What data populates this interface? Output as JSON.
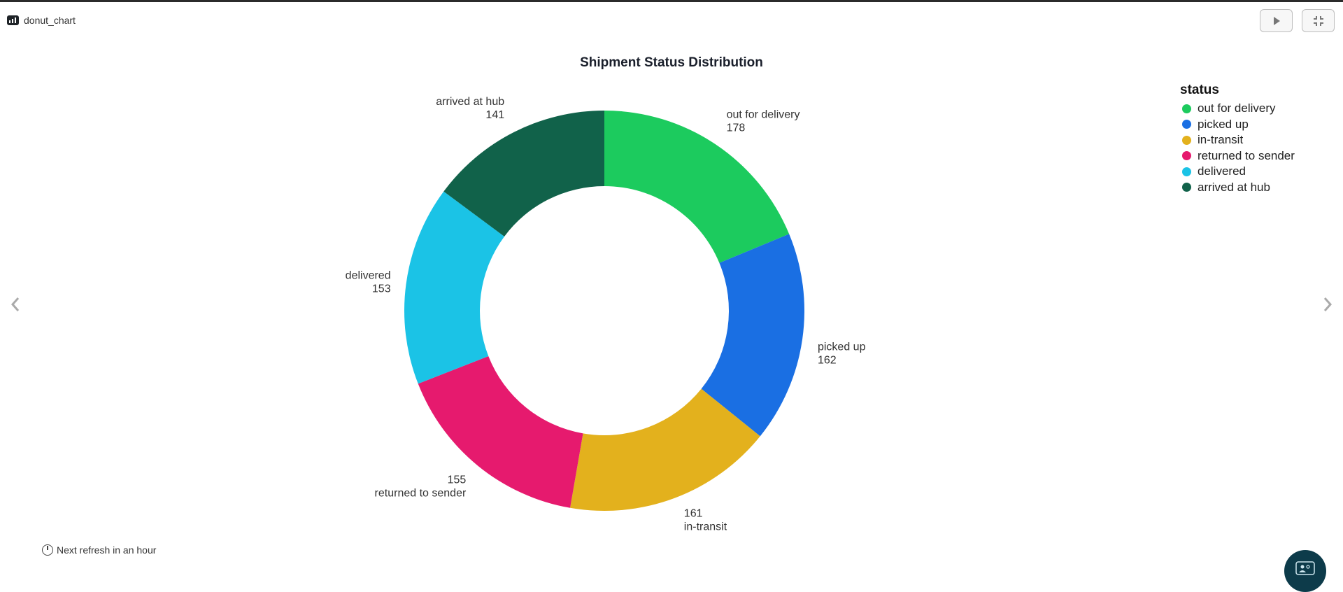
{
  "header": {
    "title": "donut_chart",
    "play_icon": "play-icon",
    "collapse_icon": "collapse-icon",
    "chart_icon": "bar-chart-icon"
  },
  "nav": {
    "prev_icon": "chevron-left-icon",
    "next_icon": "chevron-right-icon"
  },
  "chart_data": {
    "type": "pie",
    "title": "Shipment Status Distribution",
    "legend_title": "status",
    "legend_position": "top-right",
    "slices": [
      {
        "label": "out for delivery",
        "value": 178,
        "color": "#1ccb5e"
      },
      {
        "label": "picked up",
        "value": 162,
        "color": "#1a6fe3"
      },
      {
        "label": "in-transit",
        "value": 161,
        "color": "#e3b11d"
      },
      {
        "label": "returned to sender",
        "value": 155,
        "color": "#e61a6e"
      },
      {
        "label": "delivered",
        "value": 153,
        "color": "#1bc3e6"
      },
      {
        "label": "arrived at hub",
        "value": 141,
        "color": "#11624a"
      }
    ]
  },
  "footer": {
    "refresh_text": "Next refresh in an hour",
    "refresh_icon": "clock-icon"
  },
  "chat": {
    "icon": "chat-support-icon"
  }
}
